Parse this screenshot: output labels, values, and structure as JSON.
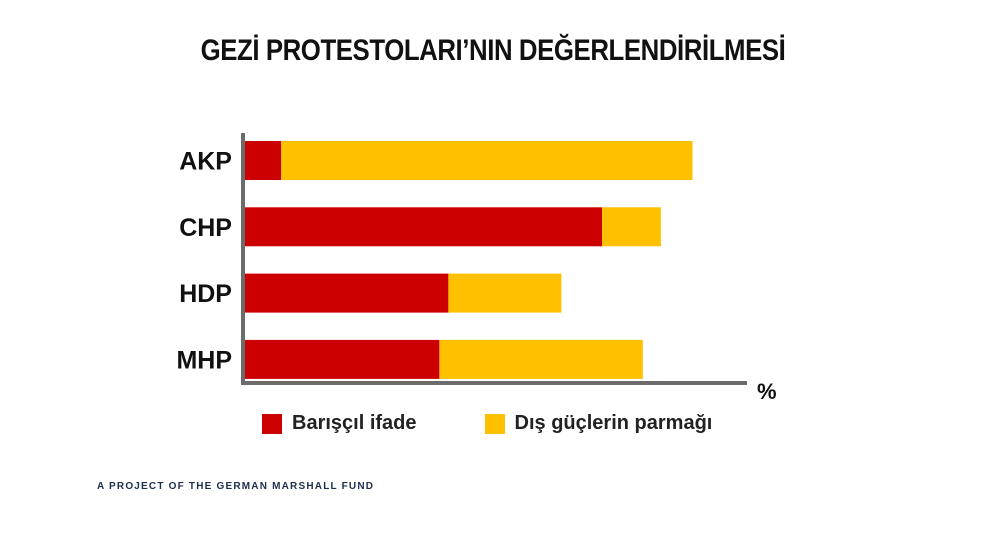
{
  "chart_data": {
    "type": "bar",
    "orientation": "horizontal",
    "stacked": true,
    "title": "GEZİ PROTESTOLARI’NIN DEĞERLENDİRİLMESİ",
    "xlabel": "%",
    "ylabel": "",
    "categories": [
      "AKP",
      "CHP",
      "HDP",
      "MHP"
    ],
    "series": [
      {
        "name": "Barışçıl ifade",
        "values": [
          8,
          79,
          45,
          43
        ],
        "color": "#cc0000"
      },
      {
        "name": "Dış güçlerin parmağı",
        "values": [
          91,
          13,
          25,
          45
        ],
        "color": "#ffc000"
      }
    ],
    "xlim": [
      0,
      110
    ],
    "grid": false,
    "legend": "bottom"
  },
  "footer": {
    "text": "A PROJECT OF THE GERMAN MARSHALL FUND"
  },
  "colors": {
    "axis": "#6b6b6b",
    "text": "#111111"
  }
}
